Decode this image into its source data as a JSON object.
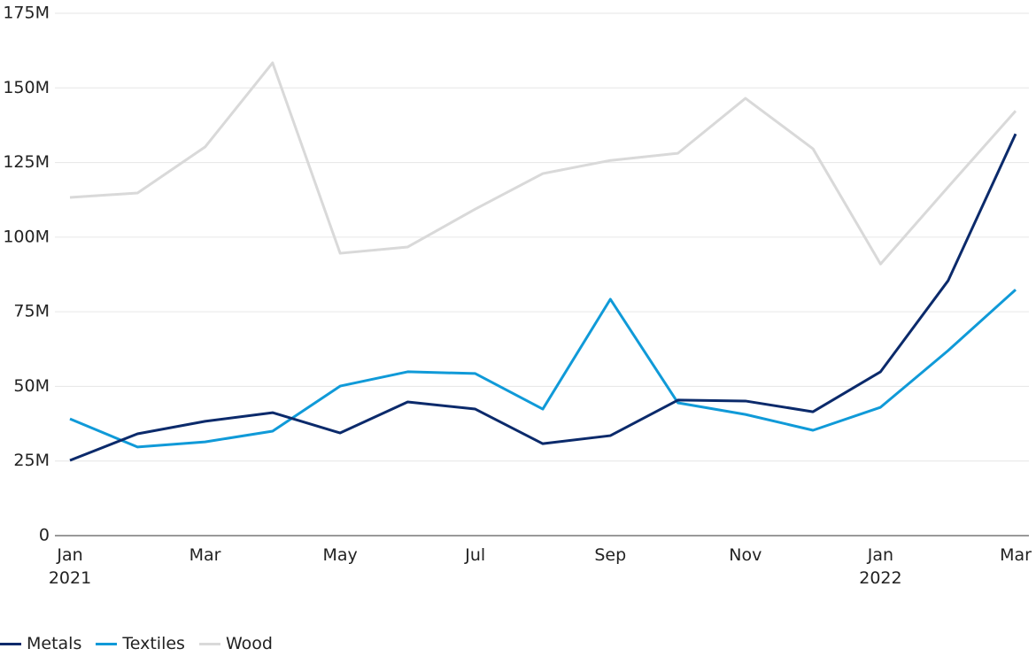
{
  "chart_data": {
    "type": "line",
    "categories": [
      "Jan 2021",
      null,
      "Mar",
      null,
      "May",
      null,
      "Jul",
      null,
      "Sep",
      null,
      "Nov",
      null,
      "Jan 2022",
      null,
      "Mar"
    ],
    "series": [
      {
        "name": "Metals",
        "color": "#0b2a6b",
        "values": [
          25.2,
          34.1,
          38.3,
          41.2,
          34.4,
          44.8,
          42.4,
          30.8,
          33.5,
          45.4,
          45.1,
          41.5,
          54.9,
          85.4,
          134.6
        ]
      },
      {
        "name": "Textiles",
        "color": "#109ad8",
        "values": [
          39.1,
          29.7,
          31.4,
          35.0,
          50.1,
          54.9,
          54.3,
          42.4,
          79.2,
          44.5,
          40.6,
          35.3,
          43.0,
          62.0,
          82.4
        ]
      },
      {
        "name": "Wood",
        "color": "#d9d9d9",
        "values": [
          113.3,
          114.8,
          130.2,
          158.4,
          94.6,
          96.7,
          109.4,
          121.3,
          125.7,
          128.1,
          146.5,
          129.6,
          91.0,
          116.8,
          142.3
        ]
      }
    ],
    "ylim": [
      0,
      175
    ],
    "yticks": [
      0,
      {
        "value": 25,
        "label": "25M"
      },
      {
        "value": 50,
        "label": "50M"
      },
      {
        "value": 75,
        "label": "75M"
      },
      {
        "value": 100,
        "label": "100M"
      },
      {
        "value": 125,
        "label": "125M"
      },
      {
        "value": 150,
        "label": "150M"
      },
      {
        "value": 175,
        "label": "175M"
      }
    ],
    "grid": true
  }
}
